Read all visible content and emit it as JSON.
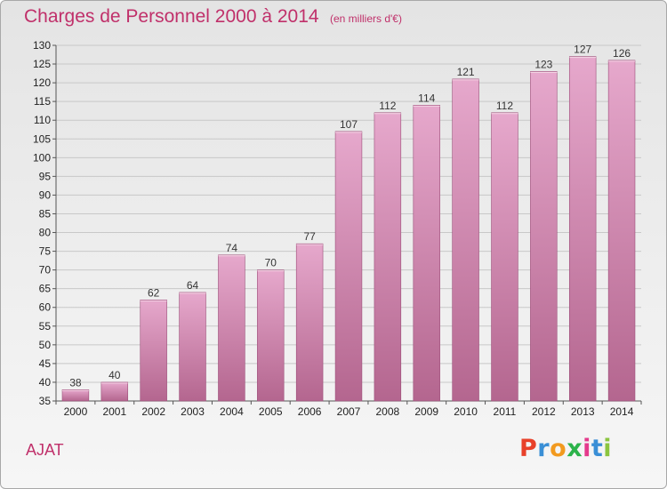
{
  "header": {
    "title": "Charges de Personnel 2000 à 2014",
    "subtitle": "(en milliers d'€)"
  },
  "footer": {
    "commune": "AJAT",
    "logo_letters": [
      "P",
      "r",
      "o",
      "x",
      "i",
      "t",
      "i"
    ],
    "logo_colors": [
      "#e8412a",
      "#3a8fd6",
      "#f29a1f",
      "#2bb34a",
      "#e43a8c",
      "#3a8fd6",
      "#8bc53f"
    ]
  },
  "colors": {
    "bar_top": "#e6a8cc",
    "bar_bottom": "#b4668f",
    "bar_edge": "#9c4d79",
    "accent": "#c0306a"
  },
  "chart_data": {
    "type": "bar",
    "categories": [
      "2000",
      "2001",
      "2002",
      "2003",
      "2004",
      "2005",
      "2006",
      "2007",
      "2008",
      "2009",
      "2010",
      "2011",
      "2012",
      "2013",
      "2014"
    ],
    "values": [
      38,
      40,
      62,
      64,
      74,
      70,
      77,
      107,
      112,
      114,
      121,
      112,
      123,
      127,
      126
    ],
    "data_labels": [
      "38",
      "40",
      "62",
      "64",
      "74",
      "70",
      "77",
      "107",
      "112",
      "114",
      "121",
      "112",
      "123",
      "127",
      "126"
    ],
    "ylim": [
      35,
      130
    ],
    "yticks": [
      35,
      40,
      45,
      50,
      55,
      60,
      65,
      70,
      75,
      80,
      85,
      90,
      95,
      100,
      105,
      110,
      115,
      120,
      125,
      130
    ],
    "grid": true
  }
}
